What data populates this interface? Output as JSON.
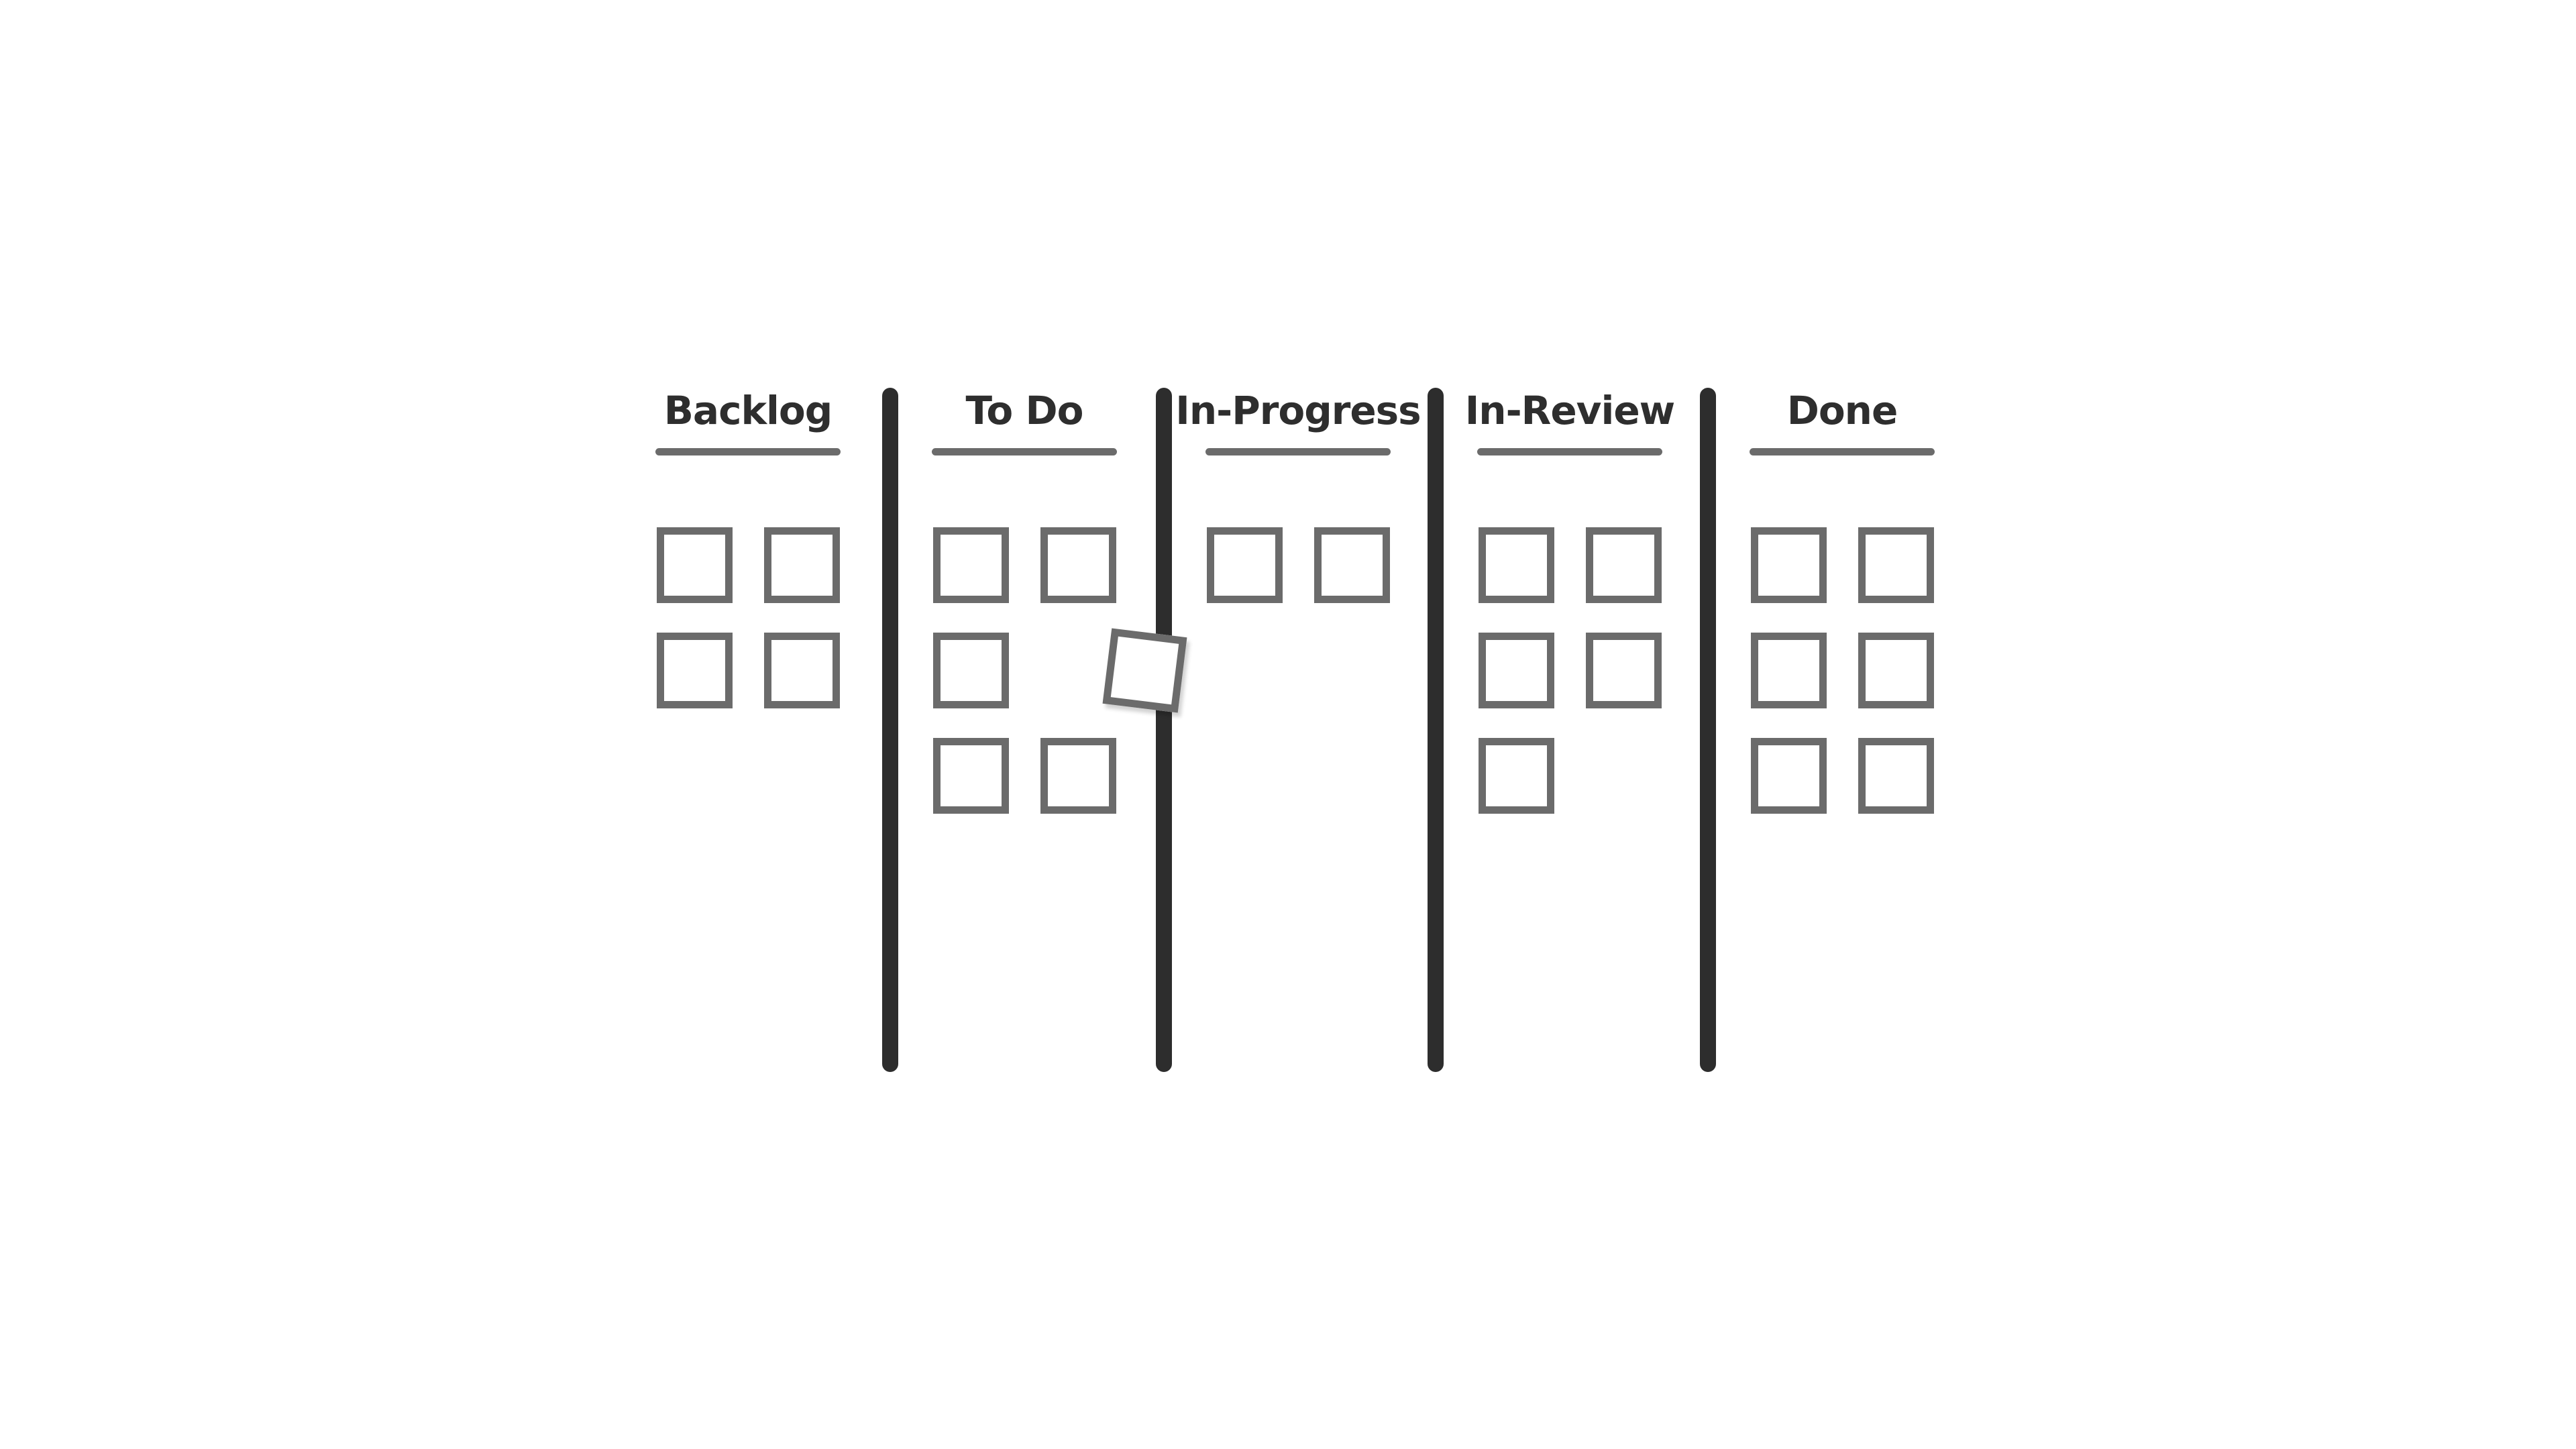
{
  "board": {
    "columns": [
      {
        "id": "backlog",
        "title": "Backlog",
        "cards": 4
      },
      {
        "id": "todo",
        "title": "To Do",
        "cards": 5
      },
      {
        "id": "in-progress",
        "title": "In-Progress",
        "cards": 2
      },
      {
        "id": "in-review",
        "title": "In-Review",
        "cards": 5
      },
      {
        "id": "done",
        "title": "Done",
        "cards": 6
      }
    ],
    "dragged_card": {
      "from": "todo"
    }
  },
  "colors": {
    "background": "#ffffff",
    "divider": "#2d2d2d",
    "card_border": "#6b6b6b",
    "underline": "#6b6b6b",
    "title_text": "#2e2e2e"
  }
}
